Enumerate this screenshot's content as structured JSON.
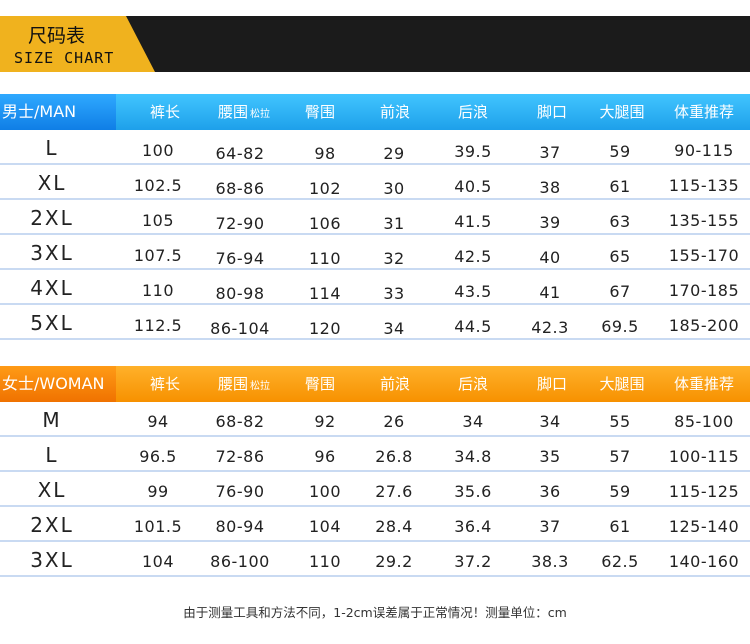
{
  "banner": {
    "title_cn": "尺码表",
    "title_en": "SIZE CHART"
  },
  "colors": {
    "men_header": "#1ea0ea",
    "women_header": "#f79100",
    "banner_gold": "#f0b21e",
    "banner_dark": "#1b1b1b"
  },
  "men": {
    "label": "男士/MAN",
    "headers": [
      "裤长",
      "腰围",
      "臀围",
      "前浪",
      "后浪",
      "脚口",
      "大腿围",
      "体重推荐"
    ],
    "waist_sub": "松拉",
    "rows": [
      [
        "L",
        "100",
        "64-82",
        "98",
        "29",
        "39.5",
        "37",
        "59",
        "90-115"
      ],
      [
        "XL",
        "102.5",
        "68-86",
        "102",
        "30",
        "40.5",
        "38",
        "61",
        "115-135"
      ],
      [
        "2XL",
        "105",
        "72-90",
        "106",
        "31",
        "41.5",
        "39",
        "63",
        "135-155"
      ],
      [
        "3XL",
        "107.5",
        "76-94",
        "110",
        "32",
        "42.5",
        "40",
        "65",
        "155-170"
      ],
      [
        "4XL",
        "110",
        "80-98",
        "114",
        "33",
        "43.5",
        "41",
        "67",
        "170-185"
      ],
      [
        "5XL",
        "112.5",
        "86-104",
        "120",
        "34",
        "44.5",
        "42.3",
        "69.5",
        "185-200"
      ]
    ]
  },
  "women": {
    "label": "女士/WOMAN",
    "headers": [
      "裤长",
      "腰围",
      "臀围",
      "前浪",
      "后浪",
      "脚口",
      "大腿围",
      "体重推荐"
    ],
    "waist_sub": "松拉",
    "rows": [
      [
        "M",
        "94",
        "68-82",
        "92",
        "26",
        "34",
        "34",
        "55",
        "85-100"
      ],
      [
        "L",
        "96.5",
        "72-86",
        "96",
        "26.8",
        "34.8",
        "35",
        "57",
        "100-115"
      ],
      [
        "XL",
        "99",
        "76-90",
        "100",
        "27.6",
        "35.6",
        "36",
        "59",
        "115-125"
      ],
      [
        "2XL",
        "101.5",
        "80-94",
        "104",
        "28.4",
        "36.4",
        "37",
        "61",
        "125-140"
      ],
      [
        "3XL",
        "104",
        "86-100",
        "110",
        "29.2",
        "37.2",
        "38.3",
        "62.5",
        "140-160"
      ]
    ]
  },
  "note": "由于测量工具和方法不同，1-2cm误差属于正常情况！测量单位：cm"
}
